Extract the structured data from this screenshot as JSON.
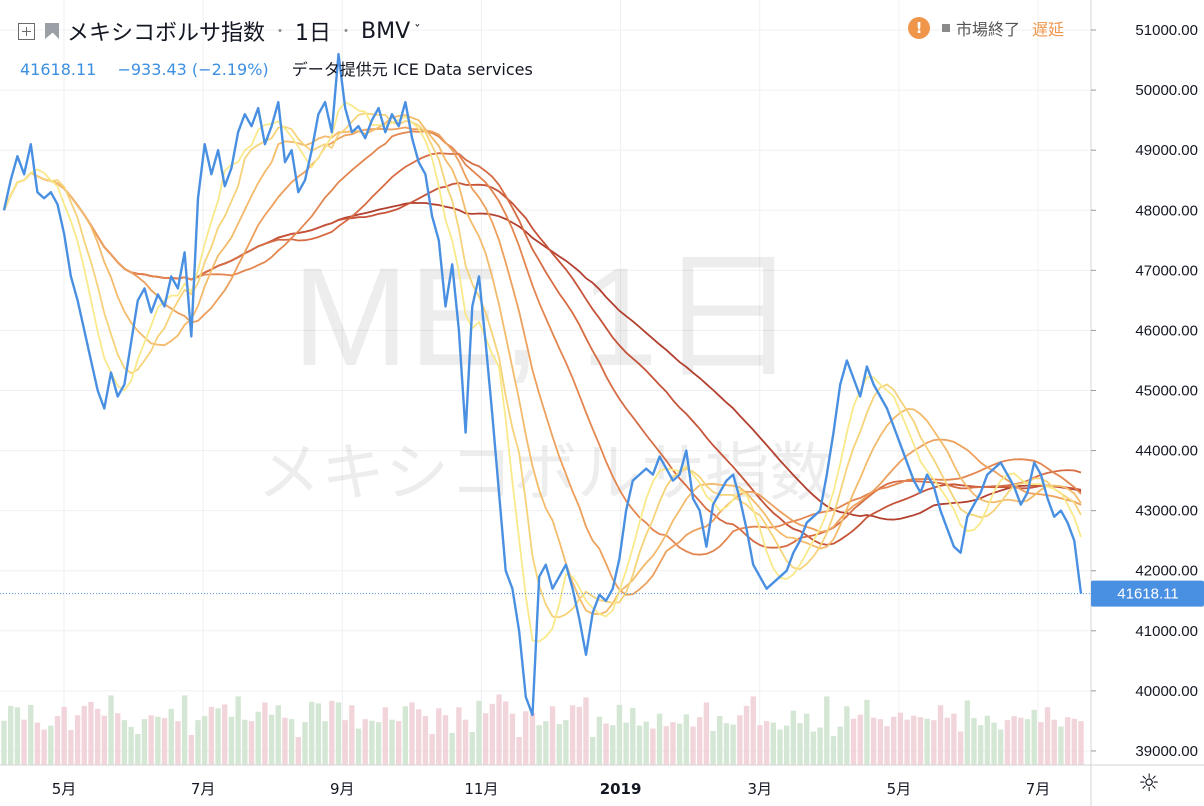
{
  "header": {
    "symbol_name": "メキシコボルサ指数",
    "interval": "1日",
    "exchange": "BMV",
    "separator": "・",
    "price": "41618.11",
    "change": "−933.43 (−2.19%)",
    "provider": "データ提供元 ICE Data services",
    "market_status": "市場終了",
    "delay_status": "遅延",
    "warn_glyph": "!"
  },
  "watermark": {
    "line1": "ME, 1日",
    "line2": "メキシコボルサ指数"
  },
  "icons": {
    "settings": "gear-icon",
    "add_compare": "plus-box-icon",
    "flag": "flag-icon",
    "alert": "exclamation-icon"
  },
  "colors": {
    "price_line": "#4a90e2",
    "last_price_label_bg": "#4a90e2",
    "ribbon": [
      "#f9e98a",
      "#f6d37a",
      "#f3bb6b",
      "#eda05d",
      "#e38650",
      "#d66c44",
      "#c65439",
      "#b33f2e"
    ],
    "volume_up": "#cfe3cf",
    "volume_down": "#f0d0d6",
    "grid": "#eef0f3"
  },
  "chart_data": {
    "type": "line",
    "title": "メキシコボルサ指数",
    "ylim": [
      38300,
      51600
    ],
    "y_ticks": [
      "51000.00",
      "50000.00",
      "49000.00",
      "48000.00",
      "47000.00",
      "46000.00",
      "45000.00",
      "44000.00",
      "43000.00",
      "42000.00",
      "41000.00",
      "40000.00",
      "39000.00"
    ],
    "x_tick_labels": [
      "5月",
      "7月",
      "9月",
      "11月",
      "2019",
      "3月",
      "5月",
      "7月"
    ],
    "last_price": 41618.11,
    "last_price_label": "41618.11",
    "ribbon_periods": [
      5,
      8,
      13,
      20,
      30,
      40,
      50,
      60
    ],
    "series": [
      {
        "name": "メキシコボルサ指数",
        "values": [
          48000,
          48500,
          48900,
          48600,
          49100,
          48300,
          48200,
          48300,
          48100,
          47600,
          46900,
          46500,
          46000,
          45500,
          45000,
          44700,
          45300,
          44900,
          45100,
          45800,
          46500,
          46700,
          46300,
          46600,
          46400,
          46900,
          46700,
          47300,
          45900,
          48200,
          49100,
          48600,
          49000,
          48400,
          48700,
          49300,
          49600,
          49400,
          49700,
          49100,
          49400,
          49800,
          48800,
          49000,
          48300,
          48500,
          49000,
          49600,
          49800,
          49300,
          50600,
          49700,
          49300,
          49400,
          49200,
          49500,
          49700,
          49300,
          49600,
          49400,
          49800,
          49200,
          48800,
          48600,
          47900,
          47500,
          46400,
          47100,
          46000,
          44300,
          46400,
          46900,
          45800,
          44600,
          43300,
          42000,
          41700,
          41000,
          39900,
          39600,
          41900,
          42100,
          41700,
          41900,
          42100,
          41700,
          41200,
          40600,
          41300,
          41600,
          41500,
          41700,
          42200,
          43000,
          43500,
          43600,
          43700,
          43600,
          43900,
          43700,
          43500,
          43600,
          44000,
          43200,
          43000,
          42400,
          43100,
          43300,
          43500,
          43600,
          43200,
          42700,
          42100,
          41900,
          41700,
          41800,
          41900,
          42000,
          42300,
          42500,
          42800,
          42900,
          43000,
          43600,
          44300,
          45100,
          45500,
          45200,
          44900,
          45400,
          45100,
          44900,
          44700,
          44400,
          44100,
          43800,
          43500,
          43300,
          43600,
          43400,
          43000,
          42700,
          42400,
          42300,
          42900,
          43100,
          43300,
          43600,
          43700,
          43800,
          43600,
          43400,
          43100,
          43300,
          43800,
          43600,
          43200,
          42900,
          43000,
          42800,
          42500,
          41618
        ]
      }
    ]
  }
}
